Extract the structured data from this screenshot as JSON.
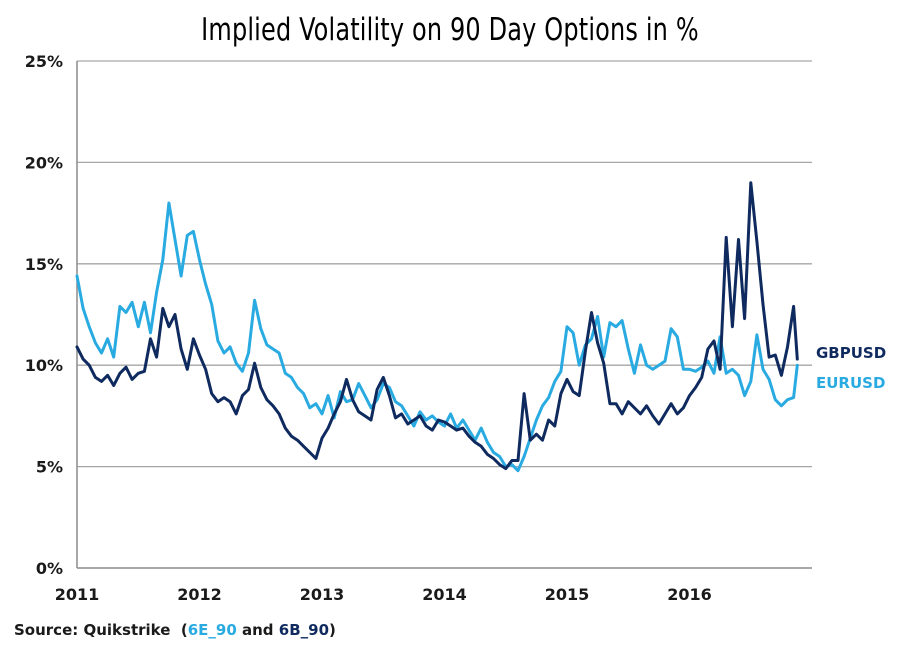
{
  "chart_data": {
    "type": "line",
    "title": "Implied Volatility on 90 Day Options in %",
    "xlabel": "",
    "ylabel": "",
    "xlim": [
      2011.0,
      2017.0
    ],
    "ylim": [
      0,
      25
    ],
    "grid": true,
    "y_ticks": [
      "0%",
      "5%",
      "10%",
      "15%",
      "20%",
      "25%"
    ],
    "y_tick_values": [
      0,
      5,
      10,
      15,
      20,
      25
    ],
    "x_ticks": [
      "2011",
      "2012",
      "2013",
      "2014",
      "2015",
      "2016"
    ],
    "x_tick_values": [
      2011,
      2012,
      2013,
      2014,
      2015,
      2016
    ],
    "legend_placement": "right-end-labels",
    "series": [
      {
        "name": "EURUSD",
        "color": "#29abe2",
        "x": [
          2011.0,
          2011.05,
          2011.1,
          2011.15,
          2011.2,
          2011.25,
          2011.3,
          2011.35,
          2011.4,
          2011.45,
          2011.5,
          2011.55,
          2011.6,
          2011.65,
          2011.7,
          2011.75,
          2011.8,
          2011.85,
          2011.9,
          2011.95,
          2012.0,
          2012.05,
          2012.1,
          2012.15,
          2012.2,
          2012.25,
          2012.3,
          2012.35,
          2012.4,
          2012.45,
          2012.5,
          2012.55,
          2012.6,
          2012.65,
          2012.7,
          2012.75,
          2012.8,
          2012.85,
          2012.9,
          2012.95,
          2013.0,
          2013.05,
          2013.1,
          2013.15,
          2013.2,
          2013.25,
          2013.3,
          2013.35,
          2013.4,
          2013.45,
          2013.5,
          2013.55,
          2013.6,
          2013.65,
          2013.7,
          2013.75,
          2013.8,
          2013.85,
          2013.9,
          2013.95,
          2014.0,
          2014.05,
          2014.1,
          2014.15,
          2014.2,
          2014.25,
          2014.3,
          2014.35,
          2014.4,
          2014.45,
          2014.5,
          2014.55,
          2014.6,
          2014.65,
          2014.7,
          2014.75,
          2014.8,
          2014.85,
          2014.9,
          2014.95,
          2015.0,
          2015.05,
          2015.1,
          2015.15,
          2015.2,
          2015.25,
          2015.3,
          2015.35,
          2015.4,
          2015.45,
          2015.5,
          2015.55,
          2015.6,
          2015.65,
          2015.7,
          2015.75,
          2015.8,
          2015.85,
          2015.9,
          2015.95,
          2016.0,
          2016.05,
          2016.1,
          2016.15,
          2016.2,
          2016.25,
          2016.3,
          2016.35,
          2016.4,
          2016.45,
          2016.5,
          2016.55,
          2016.6,
          2016.65,
          2016.7,
          2016.75,
          2016.8,
          2016.85,
          2016.88
        ],
        "values": [
          14.4,
          12.8,
          11.9,
          11.1,
          10.6,
          11.3,
          10.4,
          12.9,
          12.6,
          13.1,
          11.9,
          13.1,
          11.6,
          13.6,
          15.2,
          18.0,
          16.2,
          14.4,
          16.4,
          16.6,
          15.2,
          14.0,
          13.0,
          11.2,
          10.6,
          10.9,
          10.1,
          9.7,
          10.6,
          13.2,
          11.8,
          11.0,
          10.8,
          10.6,
          9.6,
          9.4,
          8.9,
          8.6,
          7.9,
          8.1,
          7.6,
          8.5,
          7.4,
          8.7,
          8.2,
          8.3,
          9.1,
          8.5,
          7.9,
          8.3,
          9.1,
          8.9,
          8.2,
          8.0,
          7.5,
          7.0,
          7.7,
          7.3,
          7.5,
          7.2,
          7.0,
          7.6,
          6.9,
          7.3,
          6.8,
          6.3,
          6.9,
          6.2,
          5.7,
          5.5,
          5.0,
          5.1,
          4.8,
          5.5,
          6.4,
          7.3,
          8.0,
          8.4,
          9.2,
          9.7,
          11.9,
          11.6,
          10.0,
          11.0,
          11.3,
          12.4,
          10.4,
          12.1,
          11.9,
          12.2,
          10.8,
          9.6,
          11.0,
          10.0,
          9.8,
          10.0,
          10.2,
          11.8,
          11.4,
          9.8,
          9.8,
          9.7,
          9.9,
          10.2,
          9.6,
          11.4,
          9.6,
          9.8,
          9.5,
          8.5,
          9.2,
          11.5,
          9.8,
          9.3,
          8.3,
          8.0,
          8.3,
          8.4,
          10.0
        ]
      },
      {
        "name": "GBPUSD",
        "color": "#0f2a5e",
        "x": [
          2011.0,
          2011.05,
          2011.1,
          2011.15,
          2011.2,
          2011.25,
          2011.3,
          2011.35,
          2011.4,
          2011.45,
          2011.5,
          2011.55,
          2011.6,
          2011.65,
          2011.7,
          2011.75,
          2011.8,
          2011.85,
          2011.9,
          2011.95,
          2012.0,
          2012.05,
          2012.1,
          2012.15,
          2012.2,
          2012.25,
          2012.3,
          2012.35,
          2012.4,
          2012.45,
          2012.5,
          2012.55,
          2012.6,
          2012.65,
          2012.7,
          2012.75,
          2012.8,
          2012.85,
          2012.9,
          2012.95,
          2013.0,
          2013.05,
          2013.1,
          2013.15,
          2013.2,
          2013.25,
          2013.3,
          2013.35,
          2013.4,
          2013.45,
          2013.5,
          2013.55,
          2013.6,
          2013.65,
          2013.7,
          2013.75,
          2013.8,
          2013.85,
          2013.9,
          2013.95,
          2014.0,
          2014.05,
          2014.1,
          2014.15,
          2014.2,
          2014.25,
          2014.3,
          2014.35,
          2014.4,
          2014.45,
          2014.5,
          2014.55,
          2014.6,
          2014.65,
          2014.7,
          2014.75,
          2014.8,
          2014.85,
          2014.9,
          2014.95,
          2015.0,
          2015.05,
          2015.1,
          2015.15,
          2015.2,
          2015.25,
          2015.3,
          2015.35,
          2015.4,
          2015.45,
          2015.5,
          2015.55,
          2015.6,
          2015.65,
          2015.7,
          2015.75,
          2015.8,
          2015.85,
          2015.9,
          2015.95,
          2016.0,
          2016.05,
          2016.1,
          2016.15,
          2016.2,
          2016.25,
          2016.3,
          2016.35,
          2016.4,
          2016.45,
          2016.5,
          2016.55,
          2016.6,
          2016.65,
          2016.7,
          2016.75,
          2016.8,
          2016.85,
          2016.88
        ],
        "values": [
          10.9,
          10.3,
          10.0,
          9.4,
          9.2,
          9.5,
          9.0,
          9.6,
          9.9,
          9.3,
          9.6,
          9.7,
          11.3,
          10.4,
          12.8,
          11.9,
          12.5,
          10.8,
          9.8,
          11.3,
          10.5,
          9.8,
          8.6,
          8.2,
          8.4,
          8.2,
          7.6,
          8.5,
          8.8,
          10.1,
          8.9,
          8.3,
          8.0,
          7.6,
          6.9,
          6.5,
          6.3,
          6.0,
          5.7,
          5.4,
          6.4,
          6.9,
          7.6,
          8.2,
          9.3,
          8.3,
          7.7,
          7.5,
          7.3,
          8.8,
          9.4,
          8.5,
          7.4,
          7.6,
          7.1,
          7.3,
          7.5,
          7.0,
          6.8,
          7.3,
          7.2,
          7.0,
          6.8,
          6.9,
          6.5,
          6.2,
          6.0,
          5.6,
          5.4,
          5.1,
          4.9,
          5.3,
          5.3,
          8.6,
          6.3,
          6.6,
          6.3,
          7.3,
          7.0,
          8.6,
          9.3,
          8.7,
          8.5,
          10.7,
          12.6,
          11.1,
          10.1,
          8.1,
          8.1,
          7.6,
          8.2,
          7.9,
          7.6,
          8.0,
          7.5,
          7.1,
          7.6,
          8.1,
          7.6,
          7.9,
          8.5,
          8.9,
          9.4,
          10.8,
          11.2,
          9.8,
          16.3,
          11.9,
          16.2,
          12.3,
          19.0,
          16.1,
          13.0,
          10.4,
          10.5,
          9.5,
          10.9,
          12.9,
          10.3
        ]
      }
    ],
    "annotations": [
      {
        "text": "GBPUSD",
        "color": "#0f2a5e"
      },
      {
        "text": "EURUSD",
        "color": "#29abe2"
      }
    ]
  },
  "source": {
    "prefix": "Source: Quikstrike",
    "open_paren": "(",
    "eur_code": "6E_90",
    "and_text": " and ",
    "gbp_code": "6B_90",
    "close_paren": ")"
  }
}
